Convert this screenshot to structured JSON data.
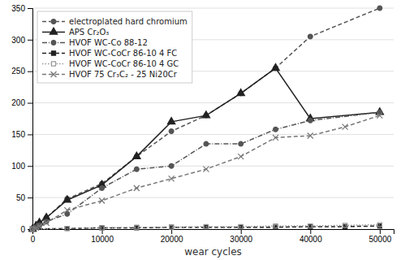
{
  "chart_data": {
    "type": "line",
    "xlabel": "wear cycles",
    "xlim": [
      0,
      52000
    ],
    "ylim": [
      0,
      350
    ],
    "xticks": [
      0,
      10000,
      20000,
      30000,
      40000,
      50000
    ],
    "yticks": [
      0,
      50,
      100,
      150,
      200,
      250,
      300,
      350
    ],
    "grid": true,
    "legend": "upper left",
    "series": [
      {
        "name": "electroplated hard chromium",
        "color": "#555555",
        "line_style": "dashed",
        "marker": "circle",
        "x": [
          0,
          500,
          1000,
          2000,
          5000,
          10000,
          15000,
          20000,
          25000,
          30000,
          35000,
          40000,
          50000
        ],
        "values": [
          0,
          5,
          10,
          18,
          48,
          72,
          115,
          155,
          180,
          215,
          255,
          305,
          350
        ]
      },
      {
        "name": "APS Cr₂O₃",
        "color": "#222222",
        "line_style": "solid",
        "marker": "triangle",
        "x": [
          0,
          500,
          1000,
          2000,
          5000,
          10000,
          15000,
          20000,
          25000,
          30000,
          35000,
          40000,
          50000
        ],
        "values": [
          0,
          5,
          10,
          18,
          46,
          70,
          115,
          170,
          180,
          215,
          255,
          175,
          185
        ]
      },
      {
        "name": "HVOF WC-Co 88-12",
        "color": "#555555",
        "line_style": "dashdot",
        "marker": "circle",
        "x": [
          0,
          500,
          1000,
          2000,
          5000,
          10000,
          15000,
          20000,
          25000,
          30000,
          35000,
          40000,
          50000
        ],
        "values": [
          0,
          3,
          6,
          12,
          24,
          65,
          95,
          100,
          135,
          135,
          158,
          172,
          185
        ]
      },
      {
        "name": "HVOF WC-CoCr 86-10 4 FC",
        "color": "#222222",
        "line_style": "dashed",
        "marker": "square",
        "x": [
          0,
          5000,
          10000,
          15000,
          20000,
          25000,
          30000,
          35000,
          40000,
          45000,
          50000
        ],
        "values": [
          0,
          1,
          2,
          2,
          3,
          3,
          3,
          3,
          4,
          4,
          5
        ]
      },
      {
        "name": "HVOF WC-CoCr 86-10 4 GC",
        "color": "#999999",
        "line_style": "dotted",
        "marker": "square-open",
        "x": [
          0,
          5000,
          10000,
          15000,
          20000,
          25000,
          30000,
          35000,
          40000,
          45000,
          50000
        ],
        "values": [
          0,
          1,
          2,
          3,
          3,
          4,
          4,
          5,
          5,
          6,
          7
        ]
      },
      {
        "name": "HVOF 75 Cr₃C₂ - 25 Ni20Cr",
        "color": "#777777",
        "line_style": "dashed",
        "marker": "x",
        "x": [
          0,
          500,
          1000,
          2000,
          5000,
          10000,
          15000,
          20000,
          25000,
          30000,
          35000,
          40000,
          45000,
          50000
        ],
        "values": [
          0,
          2,
          5,
          10,
          30,
          45,
          65,
          80,
          95,
          115,
          145,
          148,
          162,
          180
        ]
      }
    ]
  }
}
